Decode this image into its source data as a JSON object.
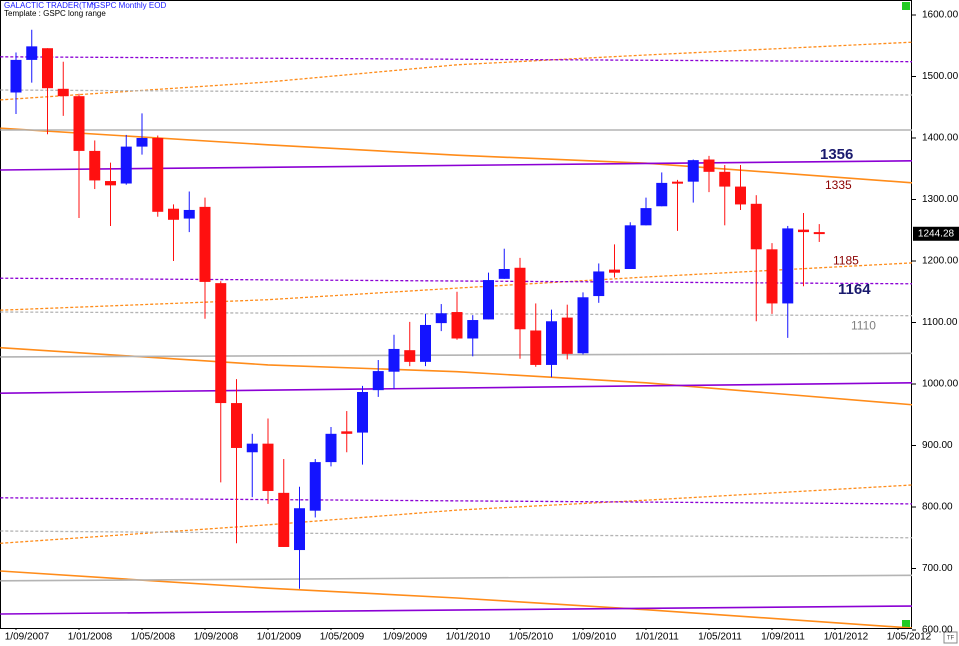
{
  "chart_data": {
    "type": "candlestick",
    "title": "GALACTIC TRADER(TM)",
    "subtitle": "^GSPC Monthly  EOD",
    "template": "Template : GSPC long range",
    "up_color": "#1414ff",
    "down_color": "#ff1010",
    "x": [
      "1/09/2007",
      "1/10/2007",
      "1/11/2007",
      "1/12/2007",
      "1/01/2008",
      "1/02/2008",
      "1/03/2008",
      "1/04/2008",
      "1/05/2008",
      "1/06/2008",
      "1/07/2008",
      "1/08/2008",
      "1/09/2008",
      "1/10/2008",
      "1/11/2008",
      "1/12/2008",
      "1/01/2009",
      "1/02/2009",
      "1/03/2009",
      "1/04/2009",
      "1/05/2009",
      "1/06/2009",
      "1/07/2009",
      "1/08/2009",
      "1/09/2009",
      "1/10/2009",
      "1/11/2009",
      "1/12/2009",
      "1/01/2010",
      "1/02/2010",
      "1/03/2010",
      "1/04/2010",
      "1/05/2010",
      "1/06/2010",
      "1/07/2010",
      "1/08/2010",
      "1/09/2010",
      "1/10/2010",
      "1/11/2010",
      "1/12/2010",
      "1/01/2011",
      "1/02/2011",
      "1/03/2011",
      "1/04/2011",
      "1/05/2011",
      "1/06/2011",
      "1/07/2011",
      "1/08/2011",
      "1/09/2011",
      "1/10/2011",
      "1/11/2011",
      "1/12/2011"
    ],
    "open": [
      1474,
      1527,
      1546,
      1480,
      1468,
      1379,
      1330,
      1326,
      1386,
      1400,
      1285,
      1269,
      1288,
      1164,
      969,
      889,
      903,
      823,
      730,
      794,
      873,
      923,
      921,
      990,
      1020,
      1055,
      1036,
      1099,
      1117,
      1074,
      1105,
      1171,
      1189,
      1087,
      1031,
      1108,
      1050,
      1143,
      1186,
      1187,
      1258,
      1289,
      1329,
      1329,
      1365,
      1345,
      1321,
      1293,
      1219,
      1131,
      1251,
      1247
    ],
    "high": [
      1539,
      1576,
      1546,
      1524,
      1472,
      1396,
      1360,
      1405,
      1440,
      1404,
      1292,
      1313,
      1303,
      1167,
      1008,
      919,
      944,
      878,
      833,
      878,
      930,
      956,
      997,
      1039,
      1080,
      1101,
      1114,
      1130,
      1150,
      1112,
      1181,
      1220,
      1205,
      1131,
      1121,
      1129,
      1149,
      1196,
      1227,
      1263,
      1303,
      1344,
      1332,
      1365,
      1371,
      1356,
      1356,
      1307,
      1229,
      1257,
      1278,
      1260
    ],
    "low": [
      1439,
      1490,
      1406,
      1436,
      1270,
      1317,
      1257,
      1324,
      1373,
      1272,
      1200,
      1247,
      1106,
      840,
      741,
      816,
      805,
      735,
      667,
      783,
      866,
      889,
      869,
      979,
      992,
      1029,
      1029,
      1086,
      1072,
      1045,
      1105,
      1171,
      1041,
      1028,
      1011,
      1040,
      1048,
      1132,
      1173,
      1187,
      1258,
      1289,
      1249,
      1295,
      1312,
      1258,
      1283,
      1102,
      1114,
      1075,
      1159,
      1231
    ],
    "close": [
      1527,
      1549,
      1481,
      1468,
      1379,
      1331,
      1323,
      1386,
      1400,
      1280,
      1267,
      1283,
      1166,
      969,
      896,
      903,
      826,
      735,
      798,
      873,
      919,
      919,
      987,
      1021,
      1057,
      1036,
      1096,
      1115,
      1074,
      1104,
      1169,
      1187,
      1089,
      1031,
      1102,
      1049,
      1141,
      1183,
      1181,
      1258,
      1286,
      1327,
      1326,
      1364,
      1345,
      1321,
      1292,
      1219,
      1131,
      1253,
      1247,
      1244.28
    ],
    "ylim": [
      600,
      1600
    ],
    "yticks": [
      {
        "value": 600,
        "label": "600.00"
      },
      {
        "value": 700,
        "label": "700.00"
      },
      {
        "value": 800,
        "label": "800.00"
      },
      {
        "value": 900,
        "label": "900.00"
      },
      {
        "value": 1000,
        "label": "1000.00"
      },
      {
        "value": 1100,
        "label": "1100.00"
      },
      {
        "value": 1200,
        "label": "1200.00"
      },
      {
        "value": 1300,
        "label": "1300.00"
      },
      {
        "value": 1400,
        "label": "1400.00"
      },
      {
        "value": 1500,
        "label": "1500.00"
      },
      {
        "value": 1600,
        "label": "1600.00"
      }
    ],
    "xticks": [
      "1/09/2007",
      "1/01/2008",
      "1/05/2008",
      "1/09/2008",
      "1/01/2009",
      "1/05/2009",
      "1/09/2009",
      "1/01/2010",
      "1/05/2010",
      "1/09/2010",
      "1/01/2011",
      "1/05/2011",
      "1/09/2011",
      "1/01/2012",
      "1/05/2012"
    ],
    "lines": [
      {
        "color": "#ff8c1a",
        "dash": false,
        "x": [
          "1/08/2007",
          "1/01/2009",
          "1/01/2010",
          "1/01/2011",
          "1/06/2012"
        ],
        "values": [
          1416,
          1389,
          1372,
          1359,
          1327
        ]
      },
      {
        "color": "#ff8c1a",
        "dash": false,
        "x": [
          "1/08/2007",
          "1/01/2009",
          "1/01/2010",
          "1/01/2011",
          "1/06/2012"
        ],
        "values": [
          1059,
          1031,
          1020,
          1002,
          966
        ]
      },
      {
        "color": "#ff8c1a",
        "dash": false,
        "x": [
          "1/08/2007",
          "1/01/2009",
          "1/01/2010",
          "1/01/2011",
          "1/06/2012"
        ],
        "values": [
          696,
          668,
          652,
          633,
          603
        ]
      },
      {
        "color": "#ff8c1a",
        "dash": true,
        "x": [
          "1/08/2007",
          "1/01/2009",
          "1/01/2010",
          "1/01/2011",
          "1/06/2012"
        ],
        "values": [
          1462,
          1491,
          1519,
          1535,
          1556
        ]
      },
      {
        "color": "#ff8c1a",
        "dash": true,
        "x": [
          "1/08/2007",
          "1/01/2009",
          "1/01/2010",
          "1/01/2011",
          "1/06/2012"
        ],
        "values": [
          1120,
          1137,
          1156,
          1174,
          1197
        ]
      },
      {
        "color": "#ff8c1a",
        "dash": true,
        "x": [
          "1/08/2007",
          "1/01/2009",
          "1/01/2010",
          "1/01/2011",
          "1/06/2012"
        ],
        "values": [
          741,
          771,
          795,
          811,
          836
        ]
      },
      {
        "color": "#8b00d4",
        "dash": false,
        "x": [
          "1/08/2007",
          "1/06/2012"
        ],
        "values": [
          1348,
          1363
        ]
      },
      {
        "color": "#8b00d4",
        "dash": false,
        "x": [
          "1/08/2007",
          "1/06/2012"
        ],
        "values": [
          985,
          1002
        ]
      },
      {
        "color": "#8b00d4",
        "dash": false,
        "x": [
          "1/08/2007",
          "1/06/2012"
        ],
        "values": [
          626,
          639
        ]
      },
      {
        "color": "#8b00d4",
        "dash": true,
        "x": [
          "1/08/2007",
          "1/06/2012"
        ],
        "values": [
          1532,
          1524
        ]
      },
      {
        "color": "#8b00d4",
        "dash": true,
        "x": [
          "1/08/2007",
          "1/06/2012"
        ],
        "values": [
          1172,
          1163
        ]
      },
      {
        "color": "#8b00d4",
        "dash": true,
        "x": [
          "1/08/2007",
          "1/06/2012"
        ],
        "values": [
          815,
          805
        ]
      },
      {
        "color": "#b4b4b4",
        "dash": false,
        "x": [
          "1/08/2007",
          "1/06/2012"
        ],
        "values": [
          1413,
          1413
        ]
      },
      {
        "color": "#b4b4b4",
        "dash": false,
        "x": [
          "1/08/2007",
          "1/06/2012"
        ],
        "values": [
          1044,
          1050
        ]
      },
      {
        "color": "#b4b4b4",
        "dash": false,
        "x": [
          "1/08/2007",
          "1/06/2012"
        ],
        "values": [
          680,
          689
        ]
      },
      {
        "color": "#b4b4b4",
        "dash": true,
        "x": [
          "1/08/2007",
          "1/06/2012"
        ],
        "values": [
          1478,
          1470
        ]
      },
      {
        "color": "#b4b4b4",
        "dash": true,
        "x": [
          "1/08/2007",
          "1/06/2012"
        ],
        "values": [
          1117,
          1111
        ]
      },
      {
        "color": "#b4b4b4",
        "dash": true,
        "x": [
          "1/08/2007",
          "1/06/2012"
        ],
        "values": [
          761,
          750
        ]
      }
    ],
    "annotations": [
      {
        "value": 1356,
        "color": "#1a1a6e"
      },
      {
        "value": 1335,
        "color": "#8b0000"
      },
      {
        "value": 1185,
        "color": "#8b0000"
      },
      {
        "value": 1164,
        "color": "#1a1a6e"
      },
      {
        "value": 1110,
        "color": "#808080"
      }
    ]
  }
}
